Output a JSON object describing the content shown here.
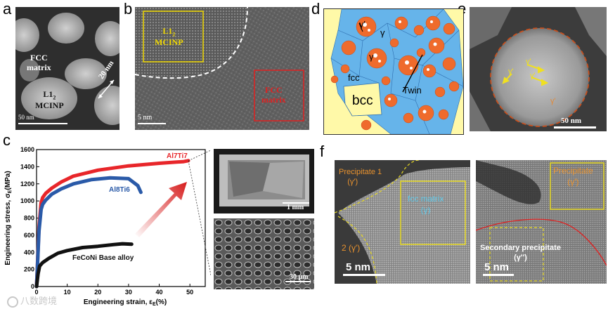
{
  "panel_letters": {
    "a": "a",
    "b": "b",
    "c": "c",
    "d": "d",
    "e": "e",
    "f": "f"
  },
  "panel_a": {
    "fcc_line1": "FCC",
    "fcc_line2": "matrix",
    "l12_line1": "L1",
    "l12_sub": "2",
    "l12_line2": "MCINP",
    "size": "20 nm",
    "scale": "50 nm"
  },
  "panel_b": {
    "l12_line1": "L1",
    "l12_sub": "2",
    "l12_line2": "MCINP",
    "fcc_line1": "FCC",
    "fcc_line2": "matrix",
    "scale": "5 nm"
  },
  "panel_d": {
    "gamma_prime": "γ'",
    "gamma": "γ",
    "fcc": "fcc",
    "bcc": "bcc",
    "twin": "Twin"
  },
  "panel_e": {
    "scale": "50 nm",
    "gamma_prime_1": "γ'",
    "gamma_prime_2": "γ'",
    "gamma_prime_3": "γ'",
    "gamma_prime_4": "γ'"
  },
  "panel_c_insets": {
    "scale_top": "1 mm",
    "scale_bottom": "30 μm"
  },
  "panel_f": {
    "precipitate1": "Precipitate 1",
    "precipitate1_phase": "(γ')",
    "matrix": "fcc matrix",
    "matrix_phase": "(γ)",
    "precipitate2": "2 (γ')",
    "scale_left": "5 nm",
    "precipitate_r": "Precipitate",
    "precipitate_r_phase": "(γ')",
    "secondary": "Secondary precipitate",
    "secondary_phase": "(γ'')",
    "scale_right": "5 nm"
  },
  "watermark": "八数跨境",
  "chart_data": {
    "type": "line",
    "xlabel": "Engineering strain, ε",
    "xlabel_sub": "E",
    "xlabel_unit": "(%)",
    "ylabel": "Engineering stress, σ",
    "ylabel_sub": "E",
    "ylabel_unit": "(MPa)",
    "xlim": [
      0,
      55
    ],
    "ylim": [
      0,
      1600
    ],
    "xticks": [
      0,
      10,
      20,
      30,
      40,
      50
    ],
    "yticks": [
      0,
      200,
      400,
      600,
      800,
      1000,
      1200,
      1400,
      1600
    ],
    "series": [
      {
        "name": "Al7Ti7",
        "color": "#e8262a",
        "x": [
          0,
          0.8,
          1.5,
          2,
          3,
          5,
          8,
          12,
          20,
          30,
          40,
          48,
          49.5
        ],
        "y": [
          0,
          700,
          980,
          1040,
          1090,
          1150,
          1220,
          1290,
          1360,
          1410,
          1440,
          1460,
          1470
        ]
      },
      {
        "name": "Al8Ti6",
        "color": "#2a5aa8",
        "x": [
          0,
          0.8,
          1.5,
          2,
          3,
          5,
          8,
          12,
          18,
          24,
          30,
          33,
          34
        ],
        "y": [
          0,
          650,
          900,
          960,
          1010,
          1080,
          1140,
          1200,
          1250,
          1270,
          1260,
          1180,
          1100
        ]
      },
      {
        "name": "FeCoNi Base alloy",
        "color": "#111111",
        "x": [
          0,
          0.5,
          1,
          2,
          4,
          7,
          10,
          15,
          20,
          25,
          28,
          31
        ],
        "y": [
          0,
          150,
          240,
          280,
          330,
          390,
          420,
          455,
          470,
          490,
          500,
          495
        ]
      }
    ]
  }
}
